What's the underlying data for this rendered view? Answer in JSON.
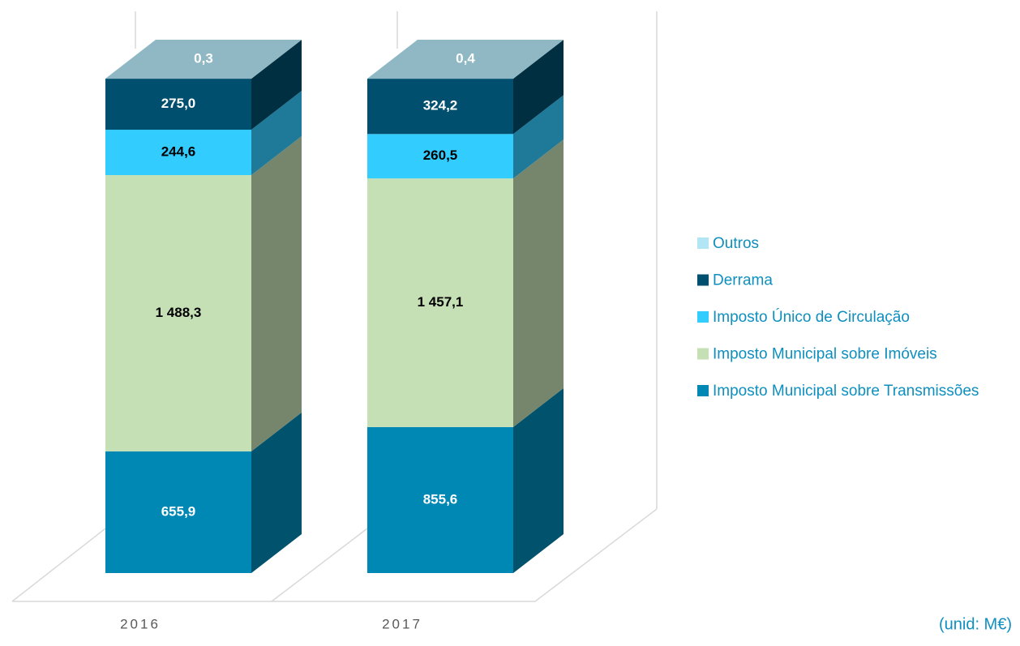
{
  "chart_data": {
    "type": "bar3d",
    "stacked": "percent",
    "categories": [
      "2016",
      "2017"
    ],
    "series": [
      {
        "name": "Imposto Municipal sobre Transmissões",
        "color": "#0088b5",
        "values": [
          655.9,
          855.6
        ],
        "value_labels": [
          "655,9",
          "855,6"
        ]
      },
      {
        "name": "Imposto Municipal sobre Imóveis",
        "color": "#c5e0b4",
        "values": [
          1488.3,
          1457.1
        ],
        "value_labels": [
          "1 488,3",
          "1 457,1"
        ]
      },
      {
        "name": "Imposto Único de Circulação",
        "color": "#33ccff",
        "values": [
          244.6,
          260.5
        ],
        "value_labels": [
          "244,6",
          "260,5"
        ]
      },
      {
        "name": "Derrama",
        "color": "#004f6e",
        "values": [
          275.0,
          324.2
        ],
        "value_labels": [
          "275,0",
          "324,2"
        ]
      },
      {
        "name": "Outros",
        "color": "#b3e6f5",
        "values": [
          0.3,
          0.4
        ],
        "value_labels": [
          "0,3",
          "0,4"
        ]
      }
    ],
    "legend": "right",
    "annotation": "(unid: M€)"
  }
}
